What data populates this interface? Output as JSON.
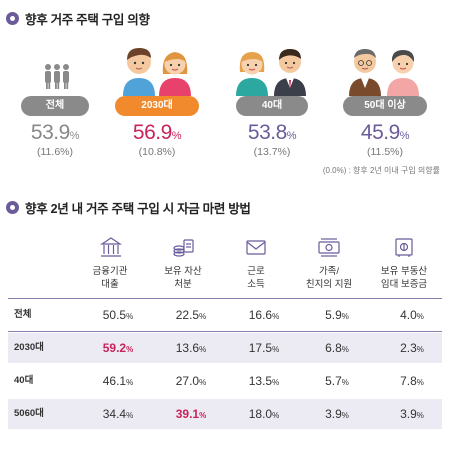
{
  "section1": {
    "title": "향후 거주 주택 구입 의향"
  },
  "groups": [
    {
      "label": "전체",
      "value": "53.9",
      "unit": "%",
      "sub": "(11.6%)",
      "color": "#8a8a8a",
      "pct_color": "#888888"
    },
    {
      "label": "2030대",
      "value": "56.9",
      "unit": "%",
      "sub": "(10.8%)",
      "color": "#f08a2c",
      "pct_color": "#c8245a"
    },
    {
      "label": "40대",
      "value": "53.8",
      "unit": "%",
      "sub": "(13.7%)",
      "color": "#8a8a8a",
      "pct_color": "#6b5b9a"
    },
    {
      "label": "50대 이상",
      "value": "45.9",
      "unit": "%",
      "sub": "(11.5%)",
      "color": "#8a8a8a",
      "pct_color": "#6b5b9a"
    }
  ],
  "note": "(0.0%) : 향후 2년 이내 구입 의향률",
  "section2": {
    "title": "향후 2년 내 거주 주택 구입 시 자금 마련 방법"
  },
  "table": {
    "columns": [
      {
        "line1": "금융기관",
        "line2": "대출",
        "icon": "bank-icon"
      },
      {
        "line1": "보유 자산",
        "line2": "처분",
        "icon": "coins-icon"
      },
      {
        "line1": "근로",
        "line2": "소득",
        "icon": "salary-envelope-icon"
      },
      {
        "line1": "가족/",
        "line2": "친지의 지원",
        "icon": "cash-icon"
      },
      {
        "line1": "보유 부동산",
        "line2": "임대 보증금",
        "icon": "safe-icon"
      }
    ],
    "rows": [
      {
        "label": "전체",
        "values": [
          "50.5",
          "22.5",
          "16.6",
          "5.9",
          "4.0"
        ],
        "highlight": -1
      },
      {
        "label": "2030대",
        "values": [
          "59.2",
          "13.6",
          "17.5",
          "6.8",
          "2.3"
        ],
        "highlight": 0
      },
      {
        "label": "40대",
        "values": [
          "46.1",
          "27.0",
          "13.5",
          "5.7",
          "7.8"
        ],
        "highlight": -1
      },
      {
        "label": "5060대",
        "values": [
          "34.4",
          "39.1",
          "18.0",
          "3.9",
          "3.9"
        ],
        "highlight": 1
      }
    ],
    "unit": "%"
  },
  "colors": {
    "accent": "#6b5b9a",
    "highlight": "#c8245a",
    "orange": "#f08a2c",
    "gray_pill": "#8a8a8a"
  }
}
